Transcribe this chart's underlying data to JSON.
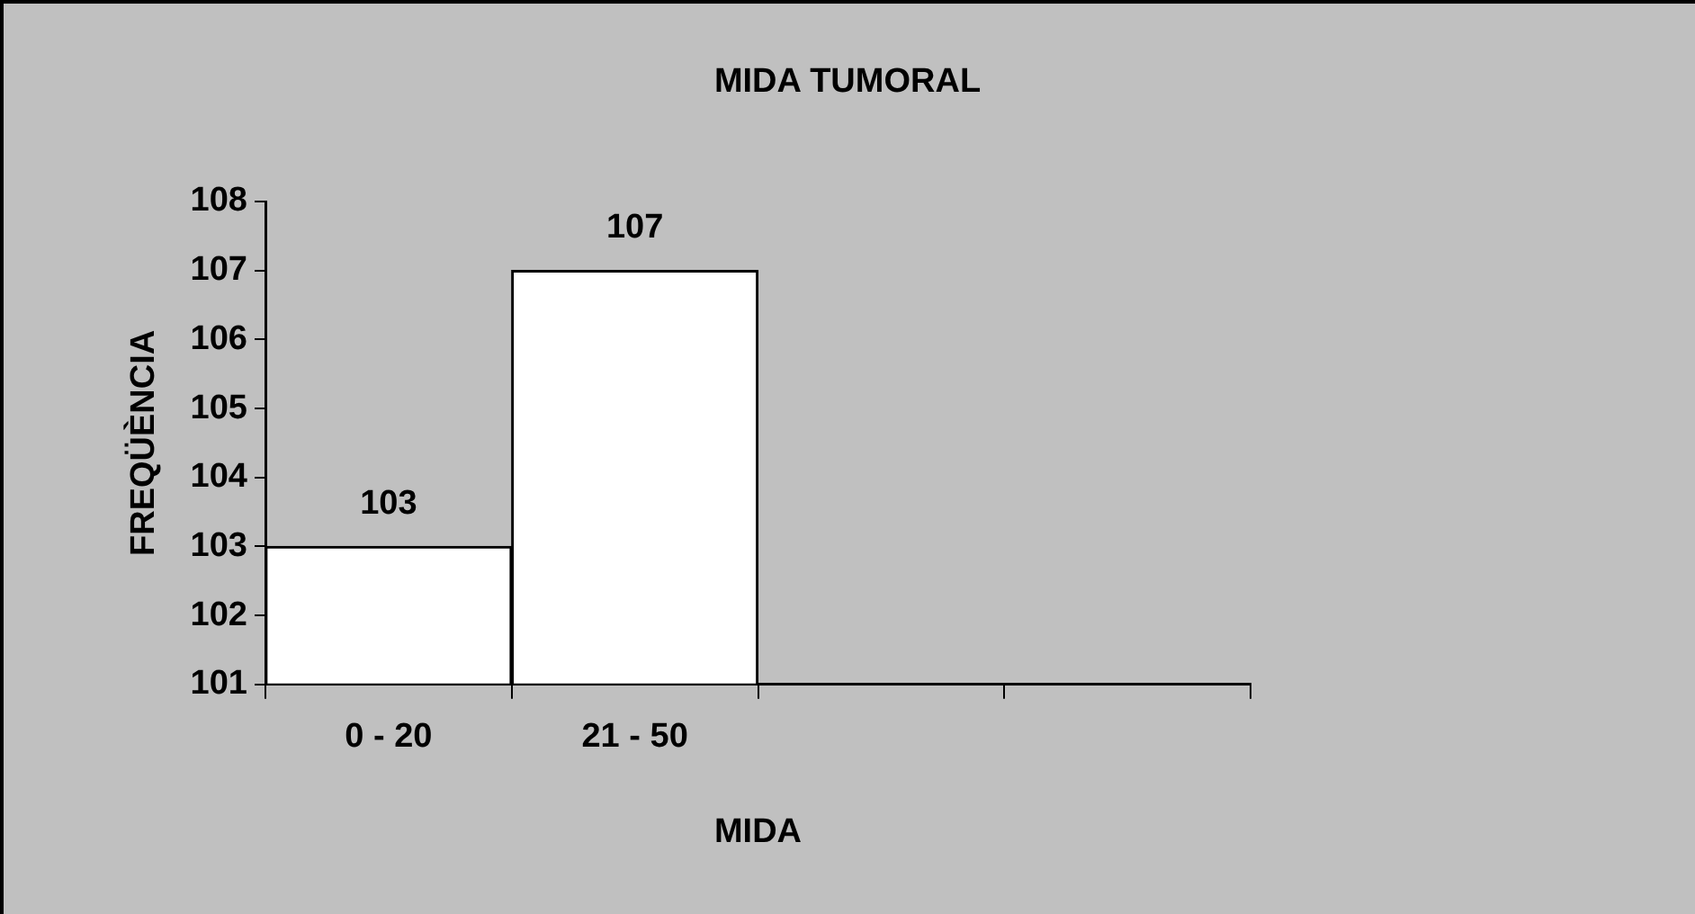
{
  "chart_data": {
    "type": "bar",
    "title": "MIDA TUMORAL",
    "xlabel": "MIDA",
    "ylabel": "FREQÜÈNCIA",
    "categories": [
      "0 - 20",
      "21 - 50",
      null,
      null
    ],
    "values": [
      103,
      107,
      null,
      null
    ],
    "color": "#ffffff",
    "ylim": [
      101,
      108
    ],
    "yticks": [
      101,
      102,
      103,
      104,
      105,
      106,
      107,
      108
    ],
    "data_labels": true,
    "grid": false,
    "legend": false
  }
}
